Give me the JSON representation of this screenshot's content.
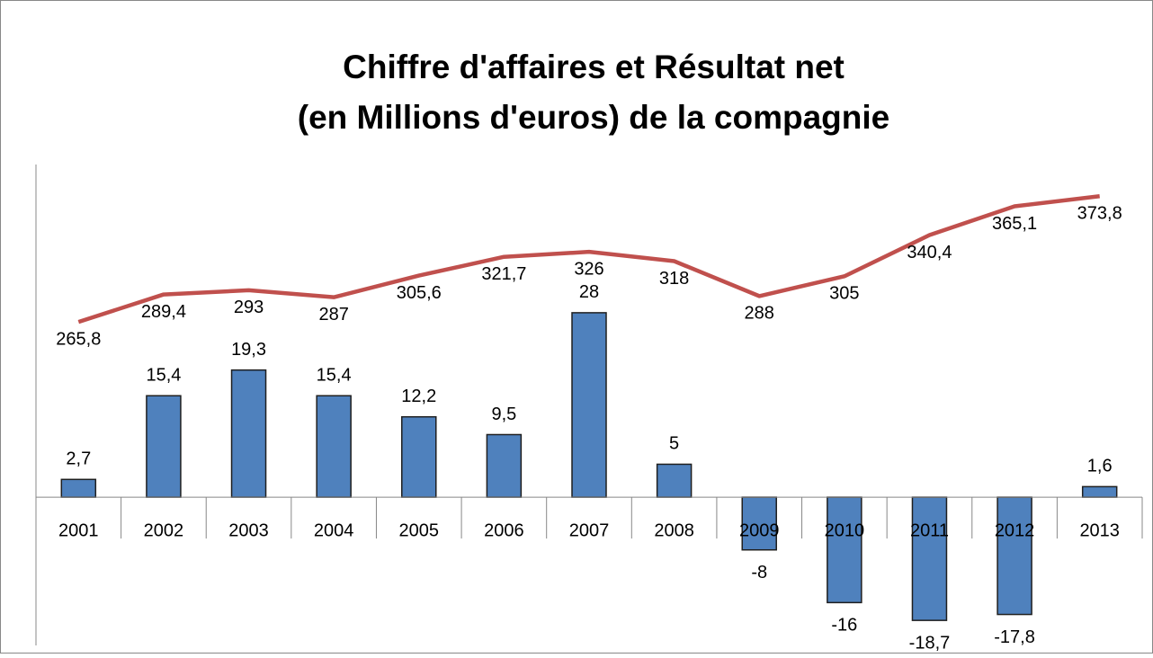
{
  "chart_data": {
    "type": "combo",
    "title": [
      "Chiffre d'affaires  et Résultat net",
      "(en Millions d'euros) de la compagnie"
    ],
    "categories": [
      "2001",
      "2002",
      "2003",
      "2004",
      "2005",
      "2006",
      "2007",
      "2008",
      "2009",
      "2010",
      "2011",
      "2012",
      "2013"
    ],
    "series": [
      {
        "type": "bar",
        "color": "#4f81bd",
        "axis": "y",
        "values": [
          2.7,
          15.4,
          19.3,
          15.4,
          12.2,
          9.5,
          28,
          5,
          -8,
          -16,
          -18.7,
          -17.8,
          1.6
        ],
        "value_labels": [
          "2,7",
          "15,4",
          "19,3",
          "15,4",
          "12,2",
          "9,5",
          "28",
          "5",
          "-8",
          "-16",
          "-18,7",
          "-17,8",
          "1,6"
        ]
      },
      {
        "type": "line",
        "color": "#c0504d",
        "axis": "y2",
        "values": [
          265.8,
          289.4,
          293,
          287,
          305.6,
          321.7,
          326,
          318,
          288,
          305,
          340.4,
          365.1,
          373.8
        ],
        "value_labels": [
          "265,8",
          "289,4",
          "293",
          "287",
          "305,6",
          "321,7",
          "326",
          "318",
          "288",
          "305",
          "340,4",
          "365,1",
          "373,8"
        ]
      }
    ],
    "ylim": [
      -22.5,
      50.5
    ],
    "y2lim": [
      -12,
      401
    ],
    "grid": false
  }
}
